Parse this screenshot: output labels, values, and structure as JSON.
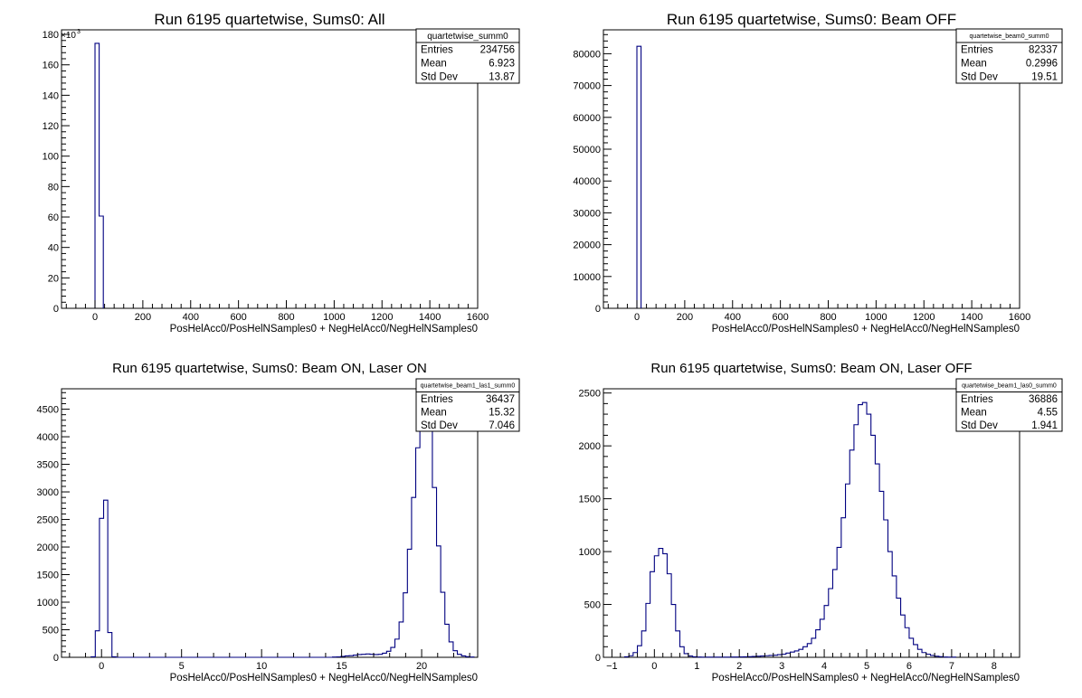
{
  "chart_data": [
    {
      "type": "histogram",
      "title": "Run 6195 quartetwise, Sums0: All",
      "xlabel": "PosHelAcc0/PosHelNSamples0 + NegHelAcc0/NegHelNSamples0",
      "ylabel": "",
      "xlim": [
        -140,
        1600
      ],
      "ylim": [
        0,
        183
      ],
      "y_multiplier": "×10",
      "y_multiplier_exp": "3",
      "xticks": [
        0,
        200,
        400,
        600,
        800,
        1000,
        1200,
        1400,
        1600
      ],
      "xtick_labels": [
        "0",
        "200",
        "400",
        "600",
        "800",
        "1000",
        "1200",
        "1400",
        "1600"
      ],
      "yticks": [
        0,
        20,
        40,
        60,
        80,
        100,
        120,
        140,
        160,
        180
      ],
      "ytick_labels": [
        "0",
        "20",
        "40",
        "60",
        "80",
        "100",
        "120",
        "140",
        "160",
        "180"
      ],
      "bins": [
        [
          0,
          17.4,
          174.1
        ],
        [
          17.4,
          34.8,
          60.6
        ]
      ],
      "stats": {
        "name": "quartetwise_summ0",
        "entries": "234756",
        "mean": "6.923",
        "std_dev": "13.87"
      },
      "stats_labels": {
        "entries": "Entries",
        "mean": "Mean",
        "std_dev": "Std Dev"
      },
      "line_color": "#000080",
      "grid": false
    },
    {
      "type": "histogram",
      "title": "Run 6195 quartetwise, Sums0: Beam OFF",
      "xlabel": "PosHelAcc0/PosHelNSamples0 + NegHelAcc0/NegHelNSamples0",
      "ylabel": "",
      "xlim": [
        -140,
        1600
      ],
      "ylim": [
        0,
        87500
      ],
      "xticks": [
        0,
        200,
        400,
        600,
        800,
        1000,
        1200,
        1400,
        1600
      ],
      "xtick_labels": [
        "0",
        "200",
        "400",
        "600",
        "800",
        "1000",
        "1200",
        "1400",
        "1600"
      ],
      "yticks": [
        0,
        10000,
        20000,
        30000,
        40000,
        50000,
        60000,
        70000,
        80000
      ],
      "ytick_labels": [
        "0",
        "10000",
        "20000",
        "30000",
        "40000",
        "50000",
        "60000",
        "70000",
        "80000"
      ],
      "bins": [
        [
          0,
          17.4,
          82337
        ]
      ],
      "stats": {
        "name": "quartetwise_beam0_summ0",
        "entries": "82337",
        "mean": "0.2996",
        "std_dev": "19.51"
      },
      "stats_labels": {
        "entries": "Entries",
        "mean": "Mean",
        "std_dev": "Std Dev"
      },
      "line_color": "#000080",
      "grid": false
    },
    {
      "type": "histogram",
      "title": "Run 6195 quartetwise, Sums0: Beam ON, Laser ON",
      "xlabel": "PosHelAcc0/PosHelNSamples0 + NegHelAcc0/NegHelNSamples0",
      "ylabel": "",
      "xlim": [
        -2.5,
        23.5
      ],
      "ylim": [
        0,
        4870
      ],
      "xticks": [
        0,
        5,
        10,
        15,
        20
      ],
      "xtick_labels": [
        "0",
        "5",
        "10",
        "15",
        "20"
      ],
      "yticks": [
        0,
        500,
        1000,
        1500,
        2000,
        2500,
        3000,
        3500,
        4000,
        4500
      ],
      "ytick_labels": [
        "0",
        "500",
        "1000",
        "1500",
        "2000",
        "2500",
        "3000",
        "3500",
        "4000",
        "4500"
      ],
      "bin_start": -0.65,
      "bin_width": 0.26,
      "counts": [
        10,
        480,
        2520,
        2850,
        450,
        10,
        0,
        0,
        0,
        0,
        0,
        0,
        0,
        0,
        0,
        0,
        0,
        0,
        0,
        0,
        0,
        0,
        0,
        0,
        0,
        0,
        0,
        0,
        0,
        0,
        0,
        0,
        0,
        0,
        0,
        0,
        0,
        0,
        0,
        0,
        0,
        0,
        0,
        0,
        0,
        0,
        0,
        0,
        0,
        0,
        0,
        0,
        0,
        0,
        0,
        0,
        0,
        0,
        5,
        8,
        15,
        25,
        30,
        40,
        50,
        55,
        60,
        55,
        50,
        55,
        75,
        110,
        180,
        330,
        640,
        1170,
        1960,
        2900,
        3800,
        4500,
        4650,
        4100,
        3080,
        2020,
        1180,
        600,
        280,
        120,
        55,
        25,
        12,
        5
      ],
      "stats": {
        "name": "quartetwise_beam1_las1_summ0",
        "entries": "36437",
        "mean": "15.32",
        "std_dev": "7.046"
      },
      "stats_labels": {
        "entries": "Entries",
        "mean": "Mean",
        "std_dev": "Std Dev"
      },
      "line_color": "#000080",
      "grid": false
    },
    {
      "type": "histogram",
      "title": "Run 6195 quartetwise, Sums0: Beam ON, Laser OFF",
      "xlabel": "PosHelAcc0/PosHelNSamples0 + NegHelAcc0/NegHelNSamples0",
      "ylabel": "",
      "xlim": [
        -1.2,
        8.6
      ],
      "ylim": [
        0,
        2540
      ],
      "xticks": [
        -1,
        0,
        1,
        2,
        3,
        4,
        5,
        6,
        7,
        8
      ],
      "xtick_labels": [
        "−1",
        "0",
        "1",
        "2",
        "3",
        "4",
        "5",
        "6",
        "7",
        "8"
      ],
      "yticks": [
        0,
        500,
        1000,
        1500,
        2000,
        2500
      ],
      "ytick_labels": [
        "0",
        "500",
        "1000",
        "1500",
        "2000",
        "2500"
      ],
      "bin_start": -0.7,
      "bin_width": 0.1,
      "counts": [
        5,
        15,
        45,
        110,
        250,
        510,
        810,
        960,
        1030,
        980,
        790,
        500,
        250,
        100,
        35,
        12,
        5,
        3,
        2,
        2,
        2,
        2,
        2,
        2,
        2,
        3,
        3,
        4,
        5,
        6,
        8,
        10,
        12,
        15,
        18,
        20,
        25,
        30,
        40,
        50,
        60,
        75,
        100,
        130,
        180,
        260,
        360,
        490,
        650,
        830,
        1040,
        1320,
        1640,
        1960,
        2200,
        2390,
        2410,
        2300,
        2100,
        1830,
        1570,
        1300,
        1000,
        770,
        560,
        400,
        280,
        180,
        120,
        75,
        45,
        30,
        18,
        10,
        6,
        3,
        2,
        2
      ],
      "stats": {
        "name": "quartetwise_beam1_las0_summ0",
        "entries": "36886",
        "mean": "4.55",
        "std_dev": "1.941"
      },
      "stats_labels": {
        "entries": "Entries",
        "mean": "Mean",
        "std_dev": "Std Dev"
      },
      "line_color": "#000080",
      "grid": false
    }
  ]
}
